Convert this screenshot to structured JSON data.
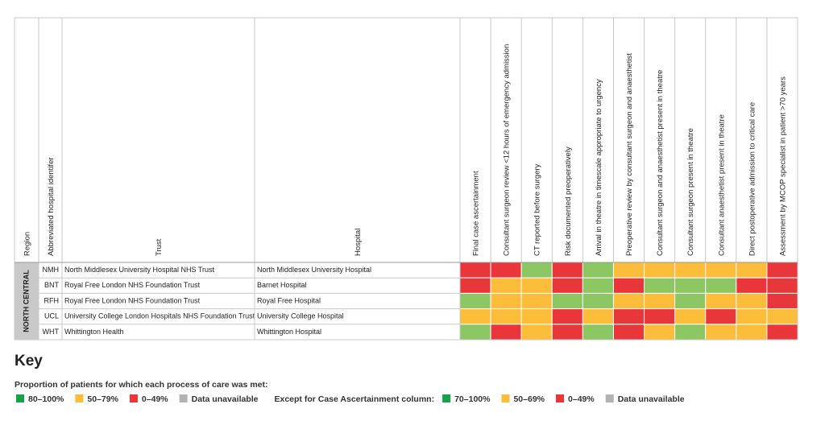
{
  "table": {
    "headers": [
      "Region",
      "Abbreviated hospital identifer",
      "Trust",
      "Hospital",
      "Final case ascertainment",
      "Consultant surgeon review <12 hours of emergency admission",
      "CT reported before surgery",
      "Risk documented preoperatively",
      "Arrival in theatre in timescale appropriate to urgency",
      "Preoperative review by consultant surgeon and anaesthetist",
      "Consultant surgeon and anaesthetist present in theatre",
      "Consultant surgeon present in theatre",
      "Consultant anaesthetist present in theatre",
      "Direct postoperative admission to critical care",
      "Assessment by MCOP specialist in patient >70 years"
    ],
    "region": "NORTH CENTRAL",
    "rows": [
      {
        "id": "NMH",
        "trust": "North Middlesex University Hospital NHS Trust",
        "hospital": "North Middlesex University Hospital",
        "cells": [
          "#e8363a",
          "#e8363a",
          "#8cc764",
          "#e8363a",
          "#8cc764",
          "#fbbd3a",
          "#fbbd3a",
          "#fbbd3a",
          "#fbbd3a",
          "#fbbd3a",
          "#e8363a"
        ]
      },
      {
        "id": "BNT",
        "trust": "Royal Free London NHS Foundation Trust",
        "hospital": "Barnet Hospital",
        "cells": [
          "#e8363a",
          "#fbbd3a",
          "#fbbd3a",
          "#e8363a",
          "#8cc764",
          "#e8363a",
          "#8cc764",
          "#8cc764",
          "#8cc764",
          "#e8363a",
          "#e8363a"
        ]
      },
      {
        "id": "RFH",
        "trust": "Royal Free London NHS Foundation Trust",
        "hospital": "Royal Free Hospital",
        "cells": [
          "#8cc764",
          "#fbbd3a",
          "#fbbd3a",
          "#8cc764",
          "#8cc764",
          "#fbbd3a",
          "#fbbd3a",
          "#8cc764",
          "#fbbd3a",
          "#fbbd3a",
          "#e8363a"
        ]
      },
      {
        "id": "UCL",
        "trust": "University College London Hospitals NHS Foundation Trust",
        "hospital": "University College Hospital",
        "cells": [
          "#fbbd3a",
          "#fbbd3a",
          "#fbbd3a",
          "#e8363a",
          "#fbbd3a",
          "#e8363a",
          "#e8363a",
          "#fbbd3a",
          "#e8363a",
          "#fbbd3a",
          "#fbbd3a"
        ]
      },
      {
        "id": "WHT",
        "trust": "Whittington Health",
        "hospital": "Whittington Hospital",
        "cells": [
          "#8cc764",
          "#e8363a",
          "#fbbd3a",
          "#e8363a",
          "#8cc764",
          "#e8363a",
          "#fbbd3a",
          "#8cc764",
          "#fbbd3a",
          "#fbbd3a",
          "#e8363a"
        ]
      }
    ]
  },
  "key": {
    "title": "Key",
    "subtitle": "Proportion of patients for which each process of care was met:",
    "items": [
      {
        "color": "#14a24c",
        "label": "80–100%"
      },
      {
        "color": "#fbbd3a",
        "label": "50–79%"
      },
      {
        "color": "#e8363a",
        "label": "0–49%"
      },
      {
        "color": "#b3b3b3",
        "label": "Data unavailable"
      }
    ],
    "exception": "Except for Case Ascertainment column:",
    "exception_items": [
      {
        "color": "#14a24c",
        "label": "70–100%"
      },
      {
        "color": "#fbbd3a",
        "label": "50–69%"
      },
      {
        "color": "#e8363a",
        "label": "0–49%"
      },
      {
        "color": "#b3b3b3",
        "label": "Data unavailable"
      }
    ]
  }
}
